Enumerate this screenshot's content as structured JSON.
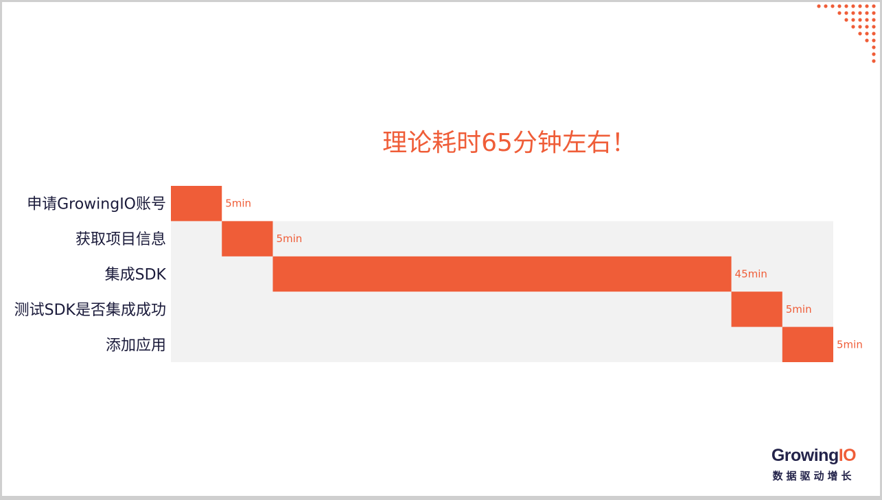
{
  "slide": {
    "title": "理论耗时65分钟左右！"
  },
  "brand": {
    "name_main": "Growing",
    "name_accent": "IO",
    "slogan": "数据驱动增长"
  },
  "colors": {
    "accent": "#ef5d38",
    "track": "#f2f2f2",
    "text_dark": "#1a1a3a"
  },
  "chart_data": {
    "type": "bar",
    "orientation": "horizontal-stacked-gantt",
    "title": "理论耗时65分钟左右！",
    "categories": [
      "申请GrowingIO账号",
      "获取项目信息",
      "集成SDK",
      "测试SDK是否集成成功",
      "添加应用"
    ],
    "series": [
      {
        "values": [
          5,
          5,
          45,
          5,
          5
        ],
        "labels": [
          "5min",
          "5min",
          "45min",
          "5min",
          "5min"
        ]
      }
    ],
    "xlim": [
      0,
      65
    ],
    "grid": false,
    "legend": "none"
  }
}
